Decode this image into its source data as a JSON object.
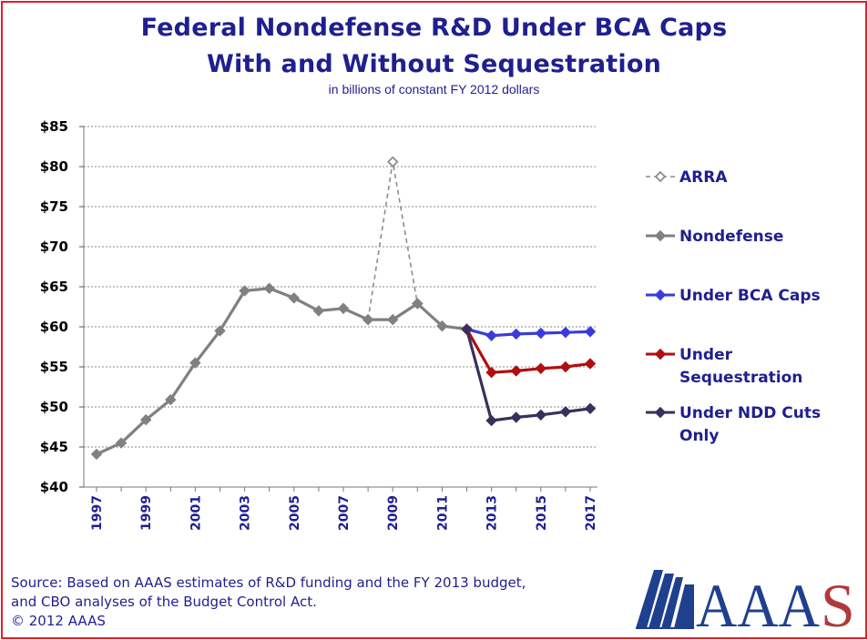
{
  "title_line1": "Federal Nondefense R&D Under BCA Caps",
  "title_line2": "With and Without Sequestration",
  "subtitle": "in billions of constant FY 2012 dollars",
  "source_lines": [
    "Source: Based on AAAS estimates of R&D funding and the FY 2013 budget,",
    "and CBO analyses of the Budget Control Act.",
    "© 2012 AAAS"
  ],
  "logo": {
    "text": "AAAS",
    "colors": {
      "blue": "#1f3f8f",
      "red": "#b03a3a"
    }
  },
  "colors": {
    "frame": "#e31f26",
    "title": "#1f1f8f"
  },
  "chart_data": {
    "type": "line",
    "title": "Federal Nondefense R&D Under BCA Caps With and Without Sequestration",
    "subtitle": "in billions of constant FY 2012 dollars",
    "xlabel": "",
    "ylabel": "",
    "ylim": [
      40,
      85
    ],
    "xlim": [
      1997,
      2017
    ],
    "yticks": [
      40,
      45,
      50,
      55,
      60,
      65,
      70,
      75,
      80,
      85
    ],
    "ytick_labels": [
      "$40",
      "$45",
      "$50",
      "$55",
      "$60",
      "$65",
      "$70",
      "$75",
      "$80",
      "$85"
    ],
    "xticks": [
      1997,
      1999,
      2001,
      2003,
      2005,
      2007,
      2009,
      2011,
      2013,
      2015,
      2017
    ],
    "xtick_labels": [
      "1997",
      "1999",
      "2001",
      "2003",
      "2005",
      "2007",
      "2009",
      "2011",
      "2013",
      "2015",
      "2017"
    ],
    "grid": "horizontal dotted",
    "legend_position": "right",
    "series": [
      {
        "name": "ARRA",
        "color": "#8c8c8c",
        "style": "dashed",
        "marker": "open-diamond",
        "points": [
          [
            2008,
            60.9
          ],
          [
            2009,
            80.6
          ],
          [
            2010,
            62.9
          ]
        ]
      },
      {
        "name": "Nondefense",
        "color": "#808080",
        "style": "solid",
        "marker": "diamond",
        "points": [
          [
            1997,
            44.1
          ],
          [
            1998,
            45.5
          ],
          [
            1999,
            48.4
          ],
          [
            2000,
            50.9
          ],
          [
            2001,
            55.5
          ],
          [
            2002,
            59.5
          ],
          [
            2003,
            64.5
          ],
          [
            2004,
            64.8
          ],
          [
            2005,
            63.6
          ],
          [
            2006,
            62.0
          ],
          [
            2007,
            62.3
          ],
          [
            2008,
            60.9
          ],
          [
            2009,
            60.9
          ],
          [
            2010,
            62.9
          ],
          [
            2011,
            60.1
          ],
          [
            2012,
            59.7
          ]
        ]
      },
      {
        "name": "Under BCA Caps",
        "color": "#3b3bdb",
        "style": "solid",
        "marker": "diamond",
        "points": [
          [
            2012,
            59.7
          ],
          [
            2013,
            58.9
          ],
          [
            2014,
            59.1
          ],
          [
            2015,
            59.2
          ],
          [
            2016,
            59.3
          ],
          [
            2017,
            59.4
          ]
        ]
      },
      {
        "name": "Under Sequestration",
        "color": "#b00f0f",
        "style": "solid",
        "marker": "diamond",
        "points": [
          [
            2012,
            59.7
          ],
          [
            2013,
            54.3
          ],
          [
            2014,
            54.5
          ],
          [
            2015,
            54.8
          ],
          [
            2016,
            55.0
          ],
          [
            2017,
            55.4
          ]
        ]
      },
      {
        "name": "Under NDD Cuts Only",
        "color": "#3a2f5a",
        "style": "solid",
        "marker": "diamond",
        "points": [
          [
            2012,
            59.7
          ],
          [
            2013,
            48.3
          ],
          [
            2014,
            48.7
          ],
          [
            2015,
            49.0
          ],
          [
            2016,
            49.4
          ],
          [
            2017,
            49.8
          ]
        ]
      }
    ],
    "legend": [
      {
        "series": "ARRA",
        "lines": [
          "ARRA"
        ]
      },
      {
        "series": "Nondefense",
        "lines": [
          "Nondefense"
        ]
      },
      {
        "series": "Under BCA Caps",
        "lines": [
          "Under BCA Caps"
        ]
      },
      {
        "series": "Under Sequestration",
        "lines": [
          "Under",
          "Sequestration"
        ]
      },
      {
        "series": "Under NDD Cuts Only",
        "lines": [
          "Under NDD Cuts",
          "Only"
        ]
      }
    ]
  }
}
